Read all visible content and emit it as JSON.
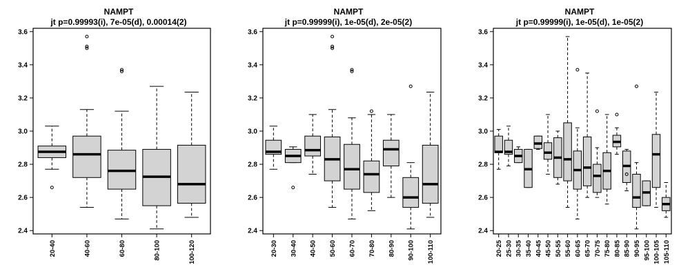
{
  "chart_data": [
    {
      "type": "boxplot",
      "title": "NAMPT",
      "subtitle": "jt p=0.99993(i), 7e-05(d), 0.00014(2)",
      "ylim": [
        2.38,
        3.62
      ],
      "yticks": [
        2.4,
        2.6,
        2.8,
        3.0,
        3.2,
        3.4,
        3.6
      ],
      "box_color": "#d3d3d3",
      "categories": [
        "20-40",
        "40-60",
        "60-80",
        "80-100",
        "100-120"
      ],
      "boxes": [
        {
          "min": 2.77,
          "q1": 2.84,
          "median": 2.875,
          "q3": 2.91,
          "max": 3.03,
          "outliers": [
            2.66
          ]
        },
        {
          "min": 2.54,
          "q1": 2.72,
          "median": 2.86,
          "q3": 2.97,
          "max": 3.13,
          "outliers": [
            3.5,
            3.51,
            3.57
          ]
        },
        {
          "min": 2.47,
          "q1": 2.65,
          "median": 2.76,
          "q3": 2.885,
          "max": 3.12,
          "outliers": [
            3.36,
            3.37
          ]
        },
        {
          "min": 2.41,
          "q1": 2.55,
          "median": 2.725,
          "q3": 2.89,
          "max": 3.27,
          "outliers": []
        },
        {
          "min": 2.48,
          "q1": 2.565,
          "median": 2.68,
          "q3": 2.915,
          "max": 3.235,
          "outliers": []
        }
      ]
    },
    {
      "type": "boxplot",
      "title": "NAMPT",
      "subtitle": "jt p=0.99999(i), 1e-05(d), 2e-05(2)",
      "ylim": [
        2.38,
        3.62
      ],
      "yticks": [
        2.4,
        2.6,
        2.8,
        3.0,
        3.2,
        3.4,
        3.6
      ],
      "box_color": "#d3d3d3",
      "categories": [
        "20-30",
        "30-40",
        "40-50",
        "50-60",
        "60-70",
        "70-80",
        "80-90",
        "90-100",
        "100-110"
      ],
      "boxes": [
        {
          "min": 2.77,
          "q1": 2.86,
          "median": 2.875,
          "q3": 2.945,
          "max": 3.03,
          "outliers": []
        },
        {
          "min": 2.81,
          "q1": 2.81,
          "median": 2.85,
          "q3": 2.89,
          "max": 2.905,
          "outliers": [
            2.66
          ]
        },
        {
          "min": 2.74,
          "q1": 2.85,
          "median": 2.885,
          "q3": 2.97,
          "max": 3.1,
          "outliers": []
        },
        {
          "min": 2.54,
          "q1": 2.7,
          "median": 2.83,
          "q3": 2.965,
          "max": 3.13,
          "outliers": [
            3.5,
            3.51,
            3.57
          ]
        },
        {
          "min": 2.47,
          "q1": 2.65,
          "median": 2.77,
          "q3": 2.92,
          "max": 3.08,
          "outliers": [
            3.36,
            3.37
          ]
        },
        {
          "min": 2.52,
          "q1": 2.63,
          "median": 2.74,
          "q3": 2.82,
          "max": 3.1,
          "outliers": [
            3.12
          ]
        },
        {
          "min": 2.6,
          "q1": 2.79,
          "median": 2.89,
          "q3": 2.945,
          "max": 3.1,
          "outliers": []
        },
        {
          "min": 2.41,
          "q1": 2.54,
          "median": 2.6,
          "q3": 2.72,
          "max": 2.81,
          "outliers": [
            3.27
          ]
        },
        {
          "min": 2.48,
          "q1": 2.565,
          "median": 2.68,
          "q3": 2.915,
          "max": 3.235,
          "outliers": []
        }
      ]
    },
    {
      "type": "boxplot",
      "title": "NAMPT",
      "subtitle": "jt p=0.99999(i), 1e-05(d), 1e-05(2)",
      "ylim": [
        2.38,
        3.62
      ],
      "yticks": [
        2.4,
        2.6,
        2.8,
        3.0,
        3.2,
        3.4,
        3.6
      ],
      "box_color": "#d3d3d3",
      "categories": [
        "20-25",
        "25-30",
        "30-35",
        "35-40",
        "40-45",
        "45-50",
        "50-55",
        "55-60",
        "60-65",
        "65-70",
        "70-75",
        "75-80",
        "80-85",
        "85-90",
        "90-95",
        "95-100",
        "100-105",
        "105-110"
      ],
      "boxes": [
        {
          "min": 2.77,
          "q1": 2.87,
          "median": 2.875,
          "q3": 2.97,
          "max": 3.01,
          "outliers": []
        },
        {
          "min": 2.79,
          "q1": 2.86,
          "median": 2.875,
          "q3": 2.945,
          "max": 3.03,
          "outliers": []
        },
        {
          "min": 2.81,
          "q1": 2.81,
          "median": 2.85,
          "q3": 2.89,
          "max": 2.905,
          "outliers": []
        },
        {
          "min": 2.66,
          "q1": 2.66,
          "median": 2.77,
          "q3": 2.89,
          "max": 2.89,
          "outliers": []
        },
        {
          "min": 2.89,
          "q1": 2.895,
          "median": 2.925,
          "q3": 2.97,
          "max": 2.97,
          "outliers": []
        },
        {
          "min": 2.74,
          "q1": 2.83,
          "median": 2.87,
          "q3": 2.93,
          "max": 3.1,
          "outliers": []
        },
        {
          "min": 2.68,
          "q1": 2.72,
          "median": 2.84,
          "q3": 2.96,
          "max": 3.0,
          "outliers": []
        },
        {
          "min": 2.54,
          "q1": 2.7,
          "median": 2.83,
          "q3": 3.05,
          "max": 3.57,
          "outliers": []
        },
        {
          "min": 2.47,
          "q1": 2.65,
          "median": 2.765,
          "q3": 2.88,
          "max": 3.02,
          "outliers": [
            3.37
          ]
        },
        {
          "min": 2.6,
          "q1": 2.67,
          "median": 2.78,
          "q3": 2.965,
          "max": 3.35,
          "outliers": []
        },
        {
          "min": 2.6,
          "q1": 2.63,
          "median": 2.73,
          "q3": 2.8,
          "max": 2.9,
          "outliers": [
            3.12
          ]
        },
        {
          "min": 2.56,
          "q1": 2.65,
          "median": 2.76,
          "q3": 2.87,
          "max": 3.1,
          "outliers": []
        },
        {
          "min": 2.86,
          "q1": 2.905,
          "median": 2.935,
          "q3": 2.975,
          "max": 3.02,
          "outliers": [
            3.1
          ]
        },
        {
          "min": 2.64,
          "q1": 2.69,
          "median": 2.79,
          "q3": 2.88,
          "max": 2.89,
          "outliers": [
            2.74
          ]
        },
        {
          "min": 2.41,
          "q1": 2.54,
          "median": 2.6,
          "q3": 2.74,
          "max": 2.81,
          "outliers": [
            3.27
          ]
        },
        {
          "min": 2.55,
          "q1": 2.55,
          "median": 2.63,
          "q3": 2.7,
          "max": 2.7,
          "outliers": []
        },
        {
          "min": 2.54,
          "q1": 2.66,
          "median": 2.86,
          "q3": 2.98,
          "max": 3.235,
          "outliers": []
        },
        {
          "min": 2.48,
          "q1": 2.52,
          "median": 2.56,
          "q3": 2.6,
          "max": 2.69,
          "outliers": []
        }
      ]
    }
  ]
}
